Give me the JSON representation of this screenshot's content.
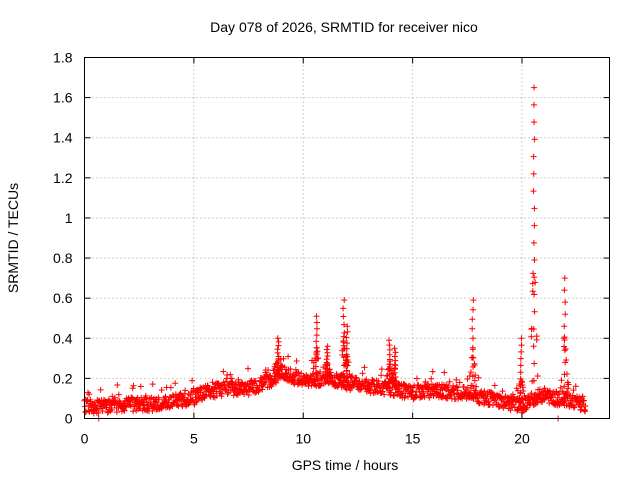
{
  "chart_data": {
    "type": "scatter",
    "title": "Day 078 of 2026, SRMTID for receiver nico",
    "xlabel": "GPS time / hours",
    "ylabel": "SRMTID / TECUs",
    "xlim": [
      0,
      24
    ],
    "ylim": [
      0,
      1.8
    ],
    "grid": true,
    "marker": "+",
    "color": "#ff0000",
    "xticks": [
      0,
      5,
      10,
      15,
      20
    ],
    "xtick_labels": [
      "0",
      "5",
      "10",
      "15",
      "20"
    ],
    "yticks": [
      0,
      0.2,
      0.4,
      0.6,
      0.8,
      1,
      1.2,
      1.4,
      1.6,
      1.8
    ],
    "ytick_labels": [
      "0",
      "0.2",
      "0.4",
      "0.6",
      "0.8",
      "1",
      "1.2",
      "1.4",
      "1.6",
      "1.8"
    ],
    "series": [
      {
        "name": "SRMTID",
        "baseline": [
          {
            "x": 0.0,
            "y": 0.06
          },
          {
            "x": 1.0,
            "y": 0.06
          },
          {
            "x": 2.0,
            "y": 0.07
          },
          {
            "x": 3.0,
            "y": 0.07
          },
          {
            "x": 4.0,
            "y": 0.09
          },
          {
            "x": 5.0,
            "y": 0.1
          },
          {
            "x": 5.5,
            "y": 0.13
          },
          {
            "x": 6.5,
            "y": 0.15
          },
          {
            "x": 7.5,
            "y": 0.15
          },
          {
            "x": 8.5,
            "y": 0.19
          },
          {
            "x": 9.0,
            "y": 0.23
          },
          {
            "x": 9.5,
            "y": 0.21
          },
          {
            "x": 10.0,
            "y": 0.19
          },
          {
            "x": 11.0,
            "y": 0.2
          },
          {
            "x": 12.0,
            "y": 0.18
          },
          {
            "x": 13.0,
            "y": 0.16
          },
          {
            "x": 14.0,
            "y": 0.15
          },
          {
            "x": 15.0,
            "y": 0.13
          },
          {
            "x": 16.0,
            "y": 0.14
          },
          {
            "x": 17.0,
            "y": 0.13
          },
          {
            "x": 18.0,
            "y": 0.11
          },
          {
            "x": 19.0,
            "y": 0.09
          },
          {
            "x": 20.0,
            "y": 0.06
          },
          {
            "x": 20.5,
            "y": 0.1
          },
          {
            "x": 21.0,
            "y": 0.12
          },
          {
            "x": 21.5,
            "y": 0.1
          },
          {
            "x": 22.0,
            "y": 0.1
          },
          {
            "x": 22.5,
            "y": 0.08
          },
          {
            "x": 22.9,
            "y": 0.06
          }
        ],
        "peaks": [
          {
            "x": 8.85,
            "y": 0.4
          },
          {
            "x": 10.6,
            "y": 0.51
          },
          {
            "x": 11.1,
            "y": 0.36
          },
          {
            "x": 11.85,
            "y": 0.59
          },
          {
            "x": 12.0,
            "y": 0.46
          },
          {
            "x": 13.95,
            "y": 0.39
          },
          {
            "x": 14.2,
            "y": 0.35
          },
          {
            "x": 17.75,
            "y": 0.59
          },
          {
            "x": 19.95,
            "y": 0.4
          },
          {
            "x": 20.55,
            "y": 1.65
          },
          {
            "x": 21.95,
            "y": 0.7
          }
        ],
        "outliers": [
          {
            "x": 0.65,
            "y": 0.0
          },
          {
            "x": 21.65,
            "y": 0.0
          }
        ]
      }
    ]
  }
}
